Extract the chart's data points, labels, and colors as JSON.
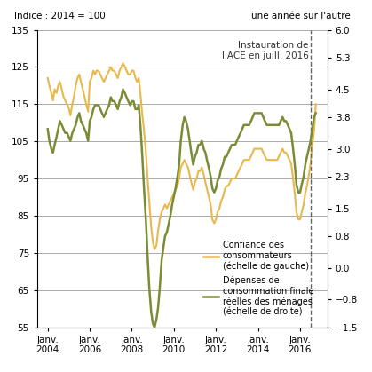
{
  "title_left": "Indice : 2014 = 100",
  "title_right": "une année sur l'autre",
  "annotation": "Instauration de\nl'ACE en juill. 2016",
  "vline_date": 2016.5,
  "left_ylim": [
    55,
    135
  ],
  "right_ylim": [
    -1.5,
    6.0
  ],
  "left_yticks": [
    55,
    65,
    75,
    85,
    95,
    105,
    115,
    125,
    135
  ],
  "right_yticks": [
    -1.5,
    -0.8,
    0.0,
    0.8,
    1.5,
    2.3,
    3.0,
    3.8,
    4.5,
    5.3,
    6.0
  ],
  "xtick_labels": [
    "Janv.\n2004",
    "Janv.\n2006",
    "Janv.\n2008",
    "Janv.\n2010",
    "Janv.\n2012",
    "Janv.\n2014",
    "Janv.\n2016"
  ],
  "xtick_positions": [
    2004,
    2006,
    2008,
    2010,
    2012,
    2014,
    2016
  ],
  "color_confidence": "#E8B84B",
  "color_depenses": "#7A8C35",
  "legend_confidence": "Confiance des\nconsommateurs\n(échelle de gauche)",
  "legend_depenses": "Dépenses de\nconsommation finale\nréelles des ménages\n(échelle de droite)",
  "confidence_x": [
    2004.0,
    2004.08,
    2004.17,
    2004.25,
    2004.33,
    2004.42,
    2004.5,
    2004.58,
    2004.67,
    2004.75,
    2004.83,
    2004.92,
    2005.0,
    2005.08,
    2005.17,
    2005.25,
    2005.33,
    2005.42,
    2005.5,
    2005.58,
    2005.67,
    2005.75,
    2005.83,
    2005.92,
    2006.0,
    2006.08,
    2006.17,
    2006.25,
    2006.33,
    2006.42,
    2006.5,
    2006.58,
    2006.67,
    2006.75,
    2006.83,
    2006.92,
    2007.0,
    2007.08,
    2007.17,
    2007.25,
    2007.33,
    2007.42,
    2007.5,
    2007.58,
    2007.67,
    2007.75,
    2007.83,
    2007.92,
    2008.0,
    2008.08,
    2008.17,
    2008.25,
    2008.33,
    2008.42,
    2008.5,
    2008.58,
    2008.67,
    2008.75,
    2008.83,
    2008.92,
    2009.0,
    2009.08,
    2009.17,
    2009.25,
    2009.33,
    2009.42,
    2009.5,
    2009.58,
    2009.67,
    2009.75,
    2009.83,
    2009.92,
    2010.0,
    2010.08,
    2010.17,
    2010.25,
    2010.33,
    2010.42,
    2010.5,
    2010.58,
    2010.67,
    2010.75,
    2010.83,
    2010.92,
    2011.0,
    2011.08,
    2011.17,
    2011.25,
    2011.33,
    2011.42,
    2011.5,
    2011.58,
    2011.67,
    2011.75,
    2011.83,
    2011.92,
    2012.0,
    2012.08,
    2012.17,
    2012.25,
    2012.33,
    2012.42,
    2012.5,
    2012.58,
    2012.67,
    2012.75,
    2012.83,
    2012.92,
    2013.0,
    2013.08,
    2013.17,
    2013.25,
    2013.33,
    2013.42,
    2013.5,
    2013.58,
    2013.67,
    2013.75,
    2013.83,
    2013.92,
    2014.0,
    2014.08,
    2014.17,
    2014.25,
    2014.33,
    2014.42,
    2014.5,
    2014.58,
    2014.67,
    2014.75,
    2014.83,
    2014.92,
    2015.0,
    2015.08,
    2015.17,
    2015.25,
    2015.33,
    2015.42,
    2015.5,
    2015.58,
    2015.67,
    2015.75,
    2015.83,
    2015.92,
    2016.0,
    2016.08,
    2016.17,
    2016.25,
    2016.33,
    2016.42,
    2016.5,
    2016.58,
    2016.67,
    2016.75
  ],
  "confidence_y": [
    122,
    120,
    118,
    116,
    119,
    118,
    120,
    121,
    119,
    117,
    116,
    115,
    114,
    112,
    115,
    117,
    120,
    122,
    123,
    121,
    119,
    117,
    115,
    113,
    121,
    122,
    124,
    123,
    124,
    124,
    123,
    122,
    121,
    122,
    123,
    124,
    125,
    124,
    124,
    123,
    122,
    124,
    125,
    126,
    125,
    124,
    123,
    123,
    124,
    124,
    122,
    121,
    122,
    117,
    112,
    108,
    102,
    95,
    89,
    82,
    78,
    76,
    77,
    81,
    84,
    86,
    87,
    88,
    87,
    88,
    89,
    90,
    91,
    92,
    93,
    95,
    98,
    99,
    100,
    99,
    98,
    96,
    94,
    92,
    94,
    95,
    97,
    97,
    98,
    96,
    94,
    92,
    90,
    88,
    84,
    83,
    84,
    86,
    87,
    89,
    90,
    92,
    93,
    93,
    94,
    95,
    95,
    95,
    96,
    97,
    98,
    99,
    100,
    100,
    100,
    100,
    101,
    102,
    103,
    103,
    103,
    103,
    103,
    102,
    101,
    100,
    100,
    100,
    100,
    100,
    100,
    100,
    101,
    102,
    103,
    102,
    102,
    101,
    100,
    99,
    95,
    91,
    86,
    84,
    84,
    86,
    88,
    91,
    93,
    96,
    99,
    104,
    108,
    115
  ],
  "depenses_x": [
    2004.0,
    2004.08,
    2004.17,
    2004.25,
    2004.33,
    2004.42,
    2004.5,
    2004.58,
    2004.67,
    2004.75,
    2004.83,
    2004.92,
    2005.0,
    2005.08,
    2005.17,
    2005.25,
    2005.33,
    2005.42,
    2005.5,
    2005.58,
    2005.67,
    2005.75,
    2005.83,
    2005.92,
    2006.0,
    2006.08,
    2006.17,
    2006.25,
    2006.33,
    2006.42,
    2006.5,
    2006.58,
    2006.67,
    2006.75,
    2006.83,
    2006.92,
    2007.0,
    2007.08,
    2007.17,
    2007.25,
    2007.33,
    2007.42,
    2007.5,
    2007.58,
    2007.67,
    2007.75,
    2007.83,
    2007.92,
    2008.0,
    2008.08,
    2008.17,
    2008.25,
    2008.33,
    2008.42,
    2008.5,
    2008.58,
    2008.67,
    2008.75,
    2008.83,
    2008.92,
    2009.0,
    2009.08,
    2009.17,
    2009.25,
    2009.33,
    2009.42,
    2009.5,
    2009.58,
    2009.67,
    2009.75,
    2009.83,
    2009.92,
    2010.0,
    2010.08,
    2010.17,
    2010.25,
    2010.33,
    2010.42,
    2010.5,
    2010.58,
    2010.67,
    2010.75,
    2010.83,
    2010.92,
    2011.0,
    2011.08,
    2011.17,
    2011.25,
    2011.33,
    2011.42,
    2011.5,
    2011.58,
    2011.67,
    2011.75,
    2011.83,
    2011.92,
    2012.0,
    2012.08,
    2012.17,
    2012.25,
    2012.33,
    2012.42,
    2012.5,
    2012.58,
    2012.67,
    2012.75,
    2012.83,
    2012.92,
    2013.0,
    2013.08,
    2013.17,
    2013.25,
    2013.33,
    2013.42,
    2013.5,
    2013.58,
    2013.67,
    2013.75,
    2013.83,
    2013.92,
    2014.0,
    2014.08,
    2014.17,
    2014.25,
    2014.33,
    2014.42,
    2014.5,
    2014.58,
    2014.67,
    2014.75,
    2014.83,
    2014.92,
    2015.0,
    2015.08,
    2015.17,
    2015.25,
    2015.33,
    2015.42,
    2015.5,
    2015.58,
    2015.67,
    2015.75,
    2015.83,
    2015.92,
    2016.0,
    2016.08,
    2016.17,
    2016.25,
    2016.33,
    2016.42,
    2016.5,
    2016.58,
    2016.67,
    2016.75
  ],
  "depenses_y": [
    3.5,
    3.2,
    3.0,
    2.9,
    3.1,
    3.3,
    3.5,
    3.7,
    3.6,
    3.5,
    3.4,
    3.4,
    3.3,
    3.2,
    3.4,
    3.5,
    3.6,
    3.8,
    3.9,
    3.7,
    3.6,
    3.5,
    3.4,
    3.2,
    3.7,
    3.8,
    4.0,
    4.1,
    4.1,
    4.1,
    4.0,
    3.9,
    3.8,
    3.9,
    4.0,
    4.1,
    4.3,
    4.2,
    4.2,
    4.1,
    4.0,
    4.2,
    4.3,
    4.5,
    4.4,
    4.3,
    4.2,
    4.1,
    4.2,
    4.2,
    4.0,
    4.0,
    4.1,
    3.5,
    2.8,
    2.0,
    1.2,
    0.3,
    -0.5,
    -1.1,
    -1.4,
    -1.5,
    -1.3,
    -1.0,
    -0.5,
    0.2,
    0.5,
    0.8,
    0.9,
    1.1,
    1.3,
    1.6,
    1.8,
    2.0,
    2.3,
    2.6,
    3.2,
    3.6,
    3.8,
    3.7,
    3.5,
    3.2,
    2.9,
    2.6,
    2.8,
    2.9,
    3.1,
    3.1,
    3.2,
    3.0,
    2.9,
    2.7,
    2.5,
    2.3,
    2.0,
    1.9,
    2.0,
    2.2,
    2.3,
    2.5,
    2.6,
    2.8,
    2.8,
    2.9,
    3.0,
    3.1,
    3.1,
    3.1,
    3.2,
    3.3,
    3.4,
    3.5,
    3.6,
    3.6,
    3.6,
    3.6,
    3.7,
    3.8,
    3.9,
    3.9,
    3.9,
    3.9,
    3.9,
    3.8,
    3.7,
    3.6,
    3.6,
    3.6,
    3.6,
    3.6,
    3.6,
    3.6,
    3.6,
    3.7,
    3.8,
    3.7,
    3.7,
    3.6,
    3.5,
    3.4,
    3.0,
    2.6,
    2.1,
    1.9,
    1.9,
    2.1,
    2.3,
    2.6,
    2.8,
    3.0,
    3.2,
    3.5,
    3.8,
    3.9
  ]
}
